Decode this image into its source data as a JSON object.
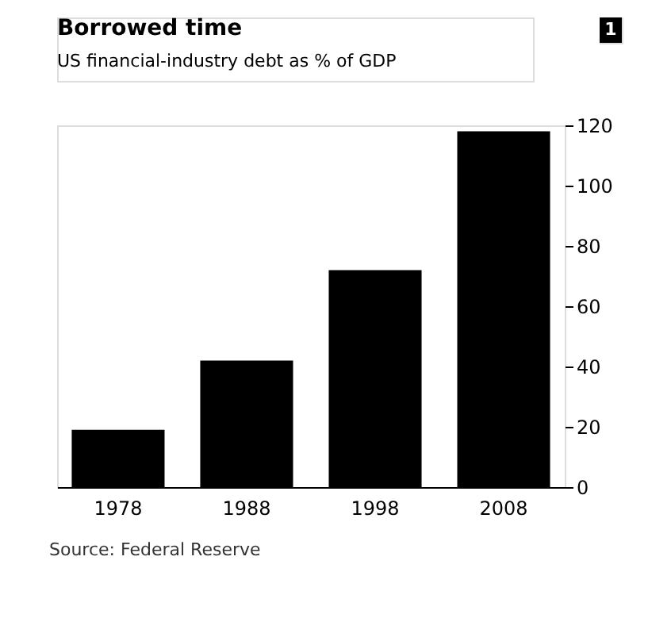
{
  "chart_data": {
    "type": "bar",
    "title": "Borrowed time",
    "subtitle": "US financial-industry debt as % of GDP",
    "categories": [
      "1978",
      "1988",
      "1998",
      "2008"
    ],
    "values": [
      19,
      42,
      72,
      118
    ],
    "color": "#000000",
    "ylim": [
      0,
      120
    ],
    "yticks": [
      0,
      20,
      40,
      60,
      80,
      100,
      120
    ],
    "grid": false,
    "annotations": [
      "Source: Federal Reserve",
      "1"
    ]
  }
}
